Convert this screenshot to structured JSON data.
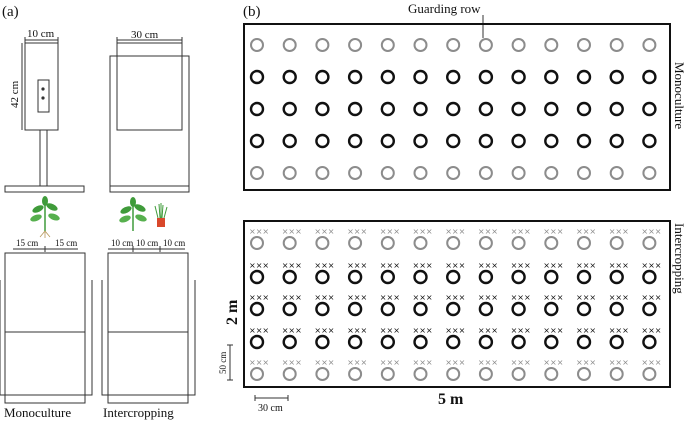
{
  "panel_a": {
    "tag": "(a)",
    "dim_width_small": "10 cm",
    "dim_width_large": "30 cm",
    "dim_height": "42 cm",
    "spacing_mono_left": "15 cm",
    "spacing_mono_right": "15 cm",
    "spacing_inter_1": "10 cm",
    "spacing_inter_2": "10 cm",
    "spacing_inter_3": "10 cm",
    "caption_mono": "Monoculture",
    "caption_inter": "Intercropping"
  },
  "panel_b": {
    "tag": "(b)",
    "guard_label": "Guarding row",
    "plot_mono_label": "Monoculture",
    "plot_inter_label": "Intercropping",
    "dim_plot_height": "2 m",
    "dim_plot_width": "5 m",
    "dim_row_spacing": "50 cm",
    "dim_col_spacing": "30 cm",
    "intercrop_marker": "×××",
    "columns": 13,
    "rows_per_plot": 5
  },
  "colors": {
    "guard_plant": "#8c8c8c",
    "focal_plant": "#111111",
    "leaf": "#3f9b3a",
    "pot_accent": "#d9482b"
  }
}
